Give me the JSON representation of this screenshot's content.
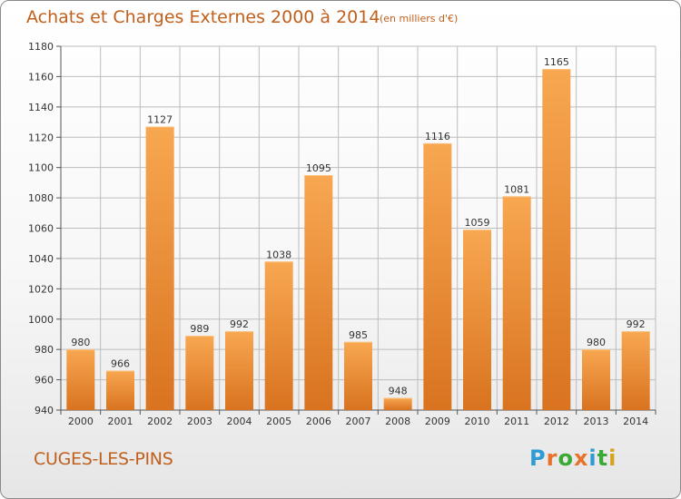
{
  "header": {
    "title": "Achats et Charges Externes 2000 à 2014",
    "subtitle": "(en milliers d'€)"
  },
  "footer": {
    "commune": "CUGES-LES-PINS",
    "logo_text": "Proxiti",
    "logo_colors": [
      "#2e9bd6",
      "#e8722a",
      "#3aa935",
      "#e8722a",
      "#2e9bd6",
      "#3aa935",
      "#d6a21f"
    ]
  },
  "colors": {
    "bar_light": "#f8a751",
    "bar_dark": "#d9731f",
    "text": "#c0601c",
    "grid": "#bdbdbd"
  },
  "chart_data": {
    "type": "bar",
    "title": "Achats et Charges Externes 2000 à 2014",
    "subtitle": "(en milliers d'€)",
    "categories": [
      "2000",
      "2001",
      "2002",
      "2003",
      "2004",
      "2005",
      "2006",
      "2007",
      "2008",
      "2009",
      "2010",
      "2011",
      "2012",
      "2013",
      "2014"
    ],
    "values": [
      980,
      966,
      1127,
      989,
      992,
      1038,
      1095,
      985,
      948,
      1116,
      1059,
      1081,
      1165,
      980,
      992
    ],
    "ylim": [
      940,
      1180
    ],
    "yticks": [
      940,
      960,
      980,
      1000,
      1020,
      1040,
      1060,
      1080,
      1100,
      1120,
      1140,
      1160,
      1180
    ],
    "grid": true,
    "xlabel": "",
    "ylabel": ""
  }
}
